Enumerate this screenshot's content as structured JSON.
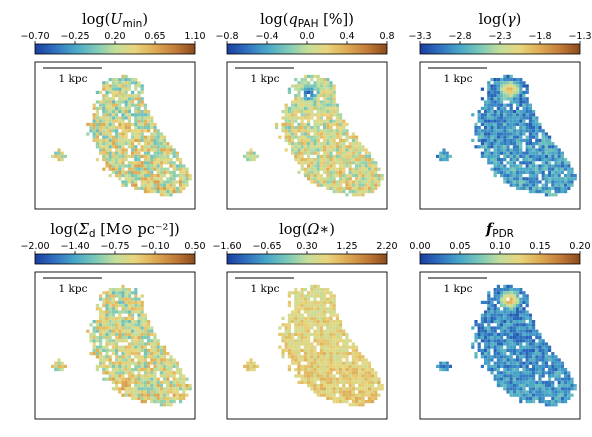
{
  "figure": {
    "panels": [
      {
        "id": "umin",
        "title": "log(U_min)",
        "title_parts": {
          "prefix": "log(",
          "symbol": "U",
          "sub": "min",
          "suffix": ")"
        },
        "colorbar": {
          "min": -0.7,
          "max": 1.1,
          "ticks": [
            "−0.70",
            "−0.25",
            "0.20",
            "0.65",
            "1.10"
          ],
          "colormap": "roma_r"
        },
        "scale_bar": "1 kpc",
        "map_level": 0.55,
        "map_variation": 0.22,
        "hotspots": []
      },
      {
        "id": "qpah",
        "title": "log(q_PAH [%])",
        "title_parts": {
          "prefix": "log(",
          "symbol": "q",
          "sub": "PAH",
          "suffix": " [%])"
        },
        "colorbar": {
          "min": -0.8,
          "max": 0.8,
          "ticks": [
            "−0.8",
            "−0.4",
            "0.0",
            "0.4",
            "0.8"
          ],
          "colormap": "roma_r"
        },
        "scale_bar": "1 kpc",
        "map_level": 0.55,
        "map_variation": 0.18,
        "hotspots": [
          {
            "u": 0.5,
            "v": 0.2,
            "level": 0.05
          }
        ]
      },
      {
        "id": "gamma",
        "title": "log(γ)",
        "title_parts": {
          "prefix": "log(",
          "symbol": "γ",
          "sub": "",
          "suffix": ")"
        },
        "colorbar": {
          "min": -3.3,
          "max": -1.3,
          "ticks": [
            "−3.3",
            "−2.8",
            "−2.3",
            "−1.8",
            "−1.3"
          ],
          "colormap": "roma_r"
        },
        "scale_bar": "1 kpc",
        "map_level": 0.22,
        "map_variation": 0.14,
        "hotspots": [
          {
            "u": 0.55,
            "v": 0.18,
            "level": 0.8
          }
        ]
      },
      {
        "id": "sigma_d",
        "title": "log(Σ_d [M⊙ pc^-2])",
        "title_parts": {
          "prefix": "log(",
          "symbol": "Σ",
          "sub": "d",
          "suffix": " [M⊙ pc⁻²])"
        },
        "colorbar": {
          "min": -2.0,
          "max": 0.5,
          "ticks": [
            "−2.00",
            "−1.40",
            "−0.75",
            "−0.10",
            "0.50"
          ],
          "colormap": "roma_r"
        },
        "scale_bar": "1 kpc",
        "map_level": 0.55,
        "map_variation": 0.2,
        "hotspots": [
          {
            "u": 0.55,
            "v": 0.75,
            "level": 0.82
          },
          {
            "u": 0.3,
            "v": 0.2,
            "level": 0.75
          }
        ]
      },
      {
        "id": "omega",
        "title": "log(Ω*)",
        "title_parts": {
          "prefix": "log(",
          "symbol": "Ω",
          "sub": "",
          "suffix": "∗)"
        },
        "colorbar": {
          "min": -1.6,
          "max": 2.2,
          "ticks": [
            "−1.60",
            "−0.65",
            "0.30",
            "1.25",
            "2.20"
          ],
          "colormap": "roma_r"
        },
        "scale_bar": "1 kpc",
        "map_level": 0.62,
        "map_variation": 0.1,
        "hotspots": []
      },
      {
        "id": "fpdr",
        "title": "f_PDR",
        "title_parts": {
          "prefix": "",
          "symbol": "f",
          "sub": "PDR",
          "suffix": ""
        },
        "colorbar": {
          "min": 0.0,
          "max": 0.2,
          "ticks": [
            "0.00",
            "0.05",
            "0.10",
            "0.15",
            "0.20"
          ],
          "colormap": "roma_r"
        },
        "scale_bar": "1 kpc",
        "map_level": 0.2,
        "map_variation": 0.12,
        "hotspots": [
          {
            "u": 0.55,
            "v": 0.18,
            "level": 0.85
          }
        ]
      }
    ]
  }
}
